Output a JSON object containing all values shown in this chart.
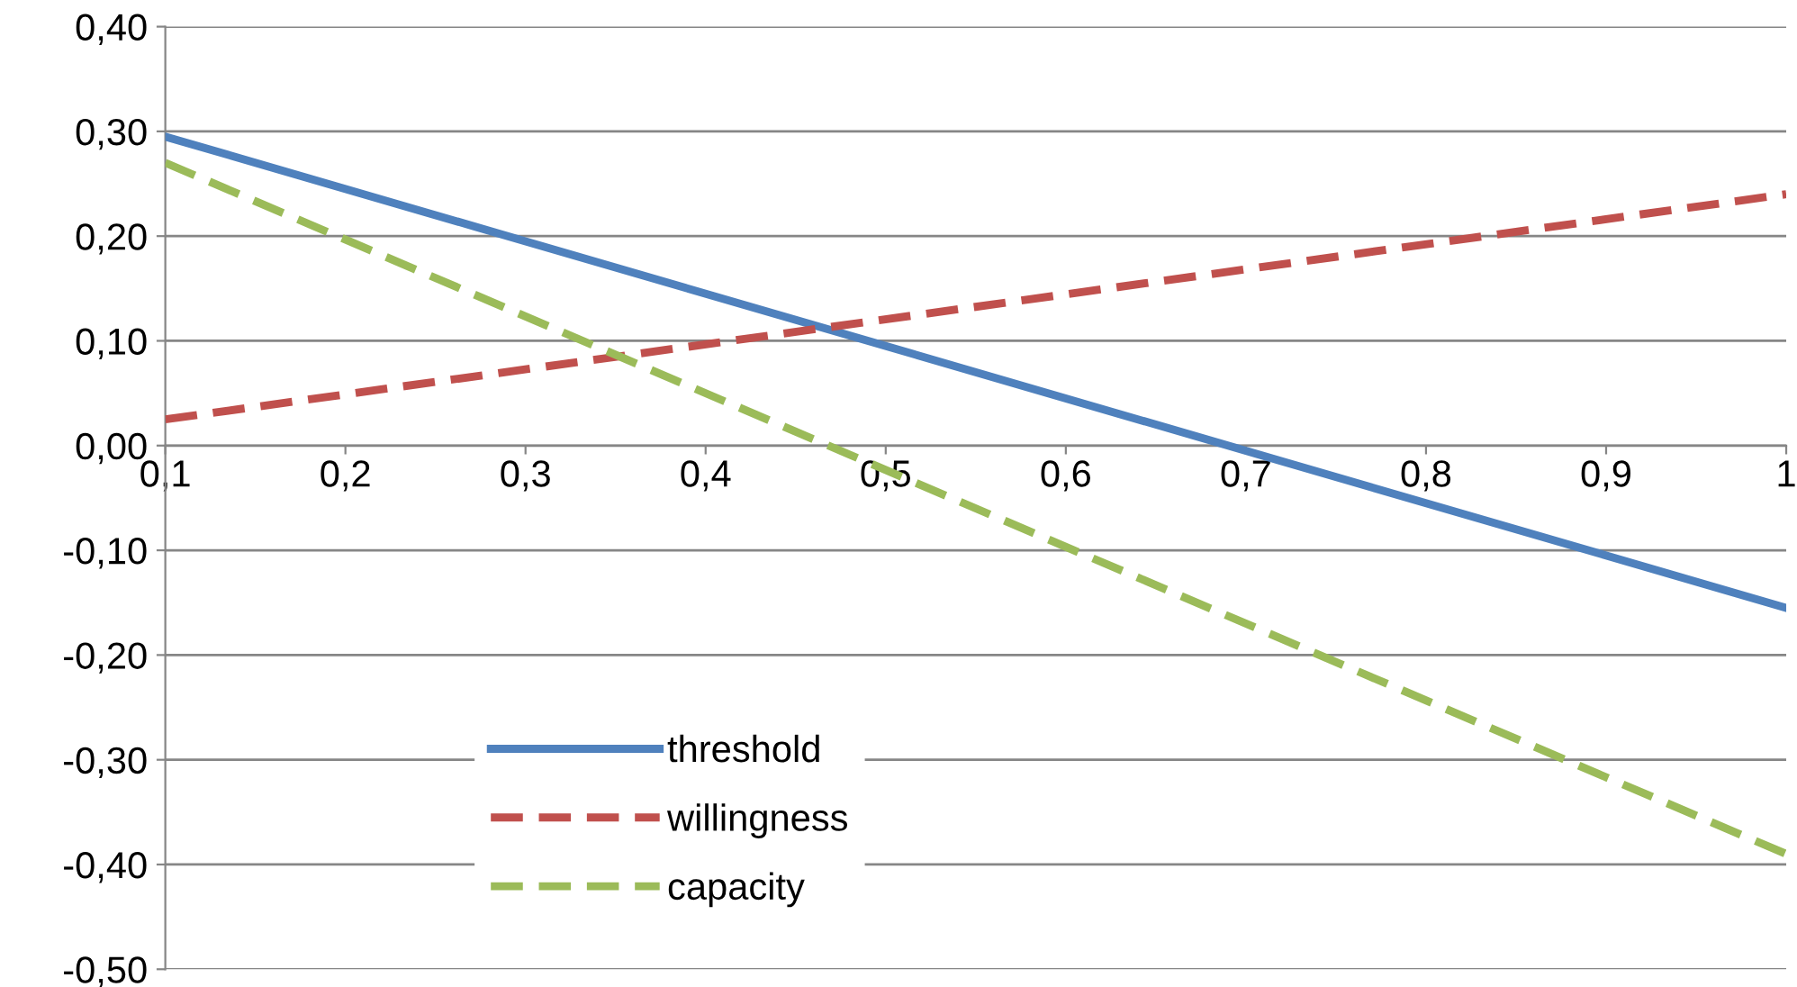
{
  "chart_data": {
    "type": "line",
    "x": [
      0.1,
      1.0
    ],
    "series": [
      {
        "name": "threshold",
        "color": "#4f81bd",
        "line_style": "solid",
        "values": [
          0.295,
          -0.155
        ]
      },
      {
        "name": "willingness",
        "color": "#c0504d",
        "line_style": "dashed",
        "values": [
          0.025,
          0.24
        ]
      },
      {
        "name": "capacity",
        "color": "#9bbb59",
        "line_style": "dashed",
        "values": [
          0.27,
          -0.39
        ]
      }
    ],
    "xlim": [
      0.1,
      1.0
    ],
    "xticks": [
      {
        "value": 0.1,
        "label": "0,1"
      },
      {
        "value": 0.2,
        "label": "0,2"
      },
      {
        "value": 0.3,
        "label": "0,3"
      },
      {
        "value": 0.4,
        "label": "0,4"
      },
      {
        "value": 0.5,
        "label": "0,5"
      },
      {
        "value": 0.6,
        "label": "0,6"
      },
      {
        "value": 0.7,
        "label": "0,7"
      },
      {
        "value": 0.8,
        "label": "0,8"
      },
      {
        "value": 0.9,
        "label": "0,9"
      },
      {
        "value": 1.0,
        "label": "1"
      }
    ],
    "ylim": [
      -0.5,
      0.4
    ],
    "yticks": [
      {
        "value": -0.5,
        "label": "-0,50"
      },
      {
        "value": -0.4,
        "label": "-0,40"
      },
      {
        "value": -0.3,
        "label": "-0,30"
      },
      {
        "value": -0.2,
        "label": "-0,20"
      },
      {
        "value": -0.1,
        "label": "-0,10"
      },
      {
        "value": 0.0,
        "label": "0,00"
      },
      {
        "value": 0.1,
        "label": "0,10"
      },
      {
        "value": 0.2,
        "label": "0,20"
      },
      {
        "value": 0.3,
        "label": "0,30"
      },
      {
        "value": 0.4,
        "label": "0,40"
      }
    ],
    "grid": "y",
    "legend": "bottom left",
    "marker": "none"
  }
}
